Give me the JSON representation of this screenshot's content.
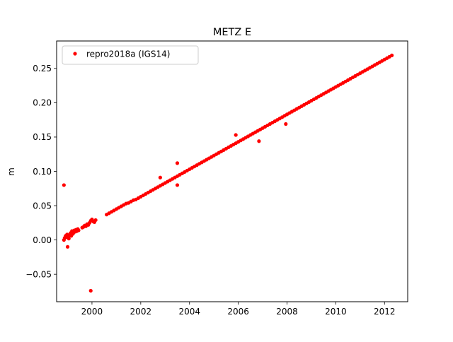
{
  "chart_data": {
    "type": "scatter",
    "title": "METZ E",
    "xlabel": "",
    "ylabel": "m",
    "xlim": [
      1998.55,
      2012.95
    ],
    "ylim": [
      -0.09,
      0.29
    ],
    "x_ticks": [
      2000,
      2002,
      2004,
      2006,
      2008,
      2010,
      2012
    ],
    "x_tick_labels": [
      "2000",
      "2002",
      "2004",
      "2006",
      "2008",
      "2010",
      "2012"
    ],
    "y_ticks": [
      -0.05,
      0.0,
      0.05,
      0.1,
      0.15,
      0.2,
      0.25
    ],
    "y_tick_labels": [
      "−0.05",
      "0.00",
      "0.05",
      "0.10",
      "0.15",
      "0.20",
      "0.25"
    ],
    "grid": false,
    "legend_position": "top-left",
    "series": [
      {
        "name": "repro2018a (IGS14)",
        "color": "#ff0000",
        "marker": "circle",
        "x": [
          1998.85,
          1998.88,
          1998.92,
          1998.95,
          1998.98,
          1999.02,
          1999.05,
          1999.08,
          1999.12,
          1999.15,
          1999.18,
          1999.22,
          1999.25,
          1999.28,
          1999.32,
          1999.35,
          1999.38,
          1999.42,
          1999.45,
          1999.6,
          1999.65,
          1999.7,
          1999.75,
          1999.8,
          1999.85,
          1999.9,
          1999.95,
          2000.0,
          2000.05,
          2000.1,
          2000.15,
          2000.6,
          2000.7,
          2000.8,
          2000.9,
          2001.0,
          2001.1,
          2001.2,
          2001.3,
          2001.4,
          2001.5,
          2001.6,
          2001.7,
          2001.8,
          2001.9,
          2002.0,
          2002.1,
          2002.2,
          2002.3,
          2002.4,
          2002.5,
          2002.6,
          2002.7,
          2002.8,
          2002.9,
          2003.0,
          2003.1,
          2003.2,
          2003.3,
          2003.4,
          2003.5,
          2003.6,
          2003.7,
          2003.8,
          2003.9,
          2004.0,
          2004.1,
          2004.2,
          2004.3,
          2004.4,
          2004.5,
          2004.6,
          2004.7,
          2004.8,
          2004.9,
          2005.0,
          2005.1,
          2005.2,
          2005.3,
          2005.4,
          2005.5,
          2005.6,
          2005.7,
          2005.8,
          2005.9,
          2006.0,
          2006.1,
          2006.2,
          2006.3,
          2006.4,
          2006.5,
          2006.6,
          2006.7,
          2006.8,
          2006.9,
          2007.0,
          2007.1,
          2007.2,
          2007.3,
          2007.4,
          2007.5,
          2007.6,
          2007.7,
          2007.8,
          2007.9,
          2008.0,
          2008.1,
          2008.2,
          2008.3,
          2008.4,
          2008.5,
          2008.6,
          2008.7,
          2008.8,
          2008.9,
          2009.0,
          2009.1,
          2009.2,
          2009.3,
          2009.4,
          2009.5,
          2009.6,
          2009.7,
          2009.8,
          2009.9,
          2010.0,
          2010.1,
          2010.2,
          2010.3,
          2010.4,
          2010.5,
          2010.6,
          2010.7,
          2010.8,
          2010.9,
          2011.0,
          2011.1,
          2011.2,
          2011.3,
          2011.4,
          2011.5,
          2011.6,
          2011.7,
          2011.8,
          2011.9,
          2012.0,
          2012.1,
          2012.2,
          2012.3,
          1998.85,
          1999.0,
          1999.95,
          2003.5,
          2003.5,
          2006.85,
          2007.95,
          2002.8,
          2005.9
        ],
        "y": [
          0.0,
          0.003,
          0.006,
          0.004,
          0.008,
          0.005,
          0.002,
          0.007,
          0.01,
          0.006,
          0.013,
          0.009,
          0.011,
          0.014,
          0.012,
          0.015,
          0.013,
          0.016,
          0.014,
          0.018,
          0.019,
          0.021,
          0.02,
          0.023,
          0.022,
          0.025,
          0.028,
          0.03,
          0.027,
          0.026,
          0.029,
          0.037,
          0.039,
          0.041,
          0.043,
          0.045,
          0.047,
          0.049,
          0.051,
          0.053,
          0.054,
          0.056,
          0.058,
          0.059,
          0.061,
          0.063,
          0.065,
          0.067,
          0.069,
          0.071,
          0.073,
          0.075,
          0.077,
          0.079,
          0.081,
          0.083,
          0.085,
          0.087,
          0.089,
          0.091,
          0.093,
          0.095,
          0.097,
          0.099,
          0.101,
          0.103,
          0.105,
          0.107,
          0.109,
          0.111,
          0.113,
          0.115,
          0.117,
          0.119,
          0.121,
          0.123,
          0.125,
          0.127,
          0.129,
          0.131,
          0.133,
          0.135,
          0.137,
          0.139,
          0.141,
          0.143,
          0.145,
          0.147,
          0.149,
          0.151,
          0.153,
          0.155,
          0.157,
          0.159,
          0.161,
          0.163,
          0.165,
          0.167,
          0.169,
          0.171,
          0.173,
          0.175,
          0.177,
          0.179,
          0.181,
          0.183,
          0.185,
          0.187,
          0.189,
          0.191,
          0.193,
          0.195,
          0.197,
          0.199,
          0.201,
          0.203,
          0.205,
          0.207,
          0.209,
          0.211,
          0.213,
          0.215,
          0.217,
          0.219,
          0.221,
          0.223,
          0.225,
          0.227,
          0.229,
          0.231,
          0.233,
          0.235,
          0.237,
          0.239,
          0.241,
          0.243,
          0.245,
          0.247,
          0.249,
          0.251,
          0.253,
          0.255,
          0.257,
          0.259,
          0.261,
          0.263,
          0.265,
          0.267,
          0.269,
          0.08,
          -0.01,
          -0.074,
          0.112,
          0.08,
          0.144,
          0.169,
          0.091,
          0.153
        ]
      }
    ]
  }
}
